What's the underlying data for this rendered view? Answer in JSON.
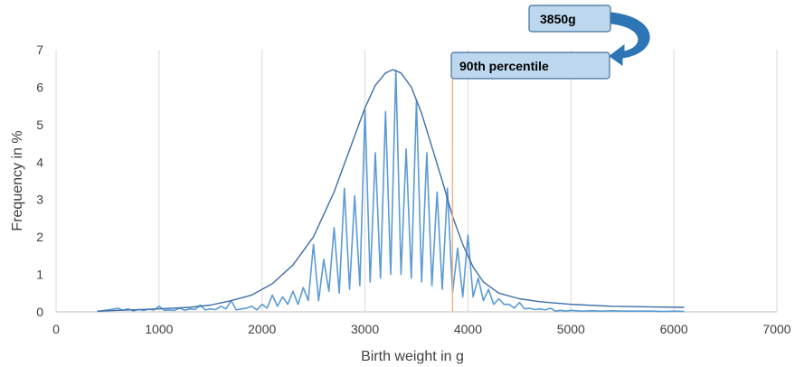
{
  "chart_data": {
    "type": "line",
    "title": "",
    "xlabel": "Birth weight in g",
    "ylabel": "Frequency in %",
    "xlim": [
      0,
      7000
    ],
    "ylim": [
      0,
      7
    ],
    "xticks": [
      0,
      1000,
      2000,
      3000,
      4000,
      5000,
      6000,
      7000
    ],
    "yticks": [
      0,
      1,
      2,
      3,
      4,
      5,
      6,
      7
    ],
    "grid": "vertical",
    "colors": {
      "series": "#5b9bd5",
      "curve": "#3f6fa8",
      "marker": "#f4b183",
      "callout_fill": "#bdd7ee",
      "callout_border": "#41719c",
      "arrow": "#2e75b6"
    },
    "series": [
      {
        "type": "line",
        "note_only_key": "raw",
        "x": [
          400,
          450,
          500,
          550,
          600,
          650,
          700,
          750,
          800,
          850,
          900,
          950,
          1000,
          1050,
          1100,
          1150,
          1200,
          1250,
          1300,
          1350,
          1400,
          1450,
          1500,
          1550,
          1600,
          1650,
          1700,
          1750,
          1800,
          1850,
          1900,
          1950,
          2000,
          2050,
          2100,
          2150,
          2200,
          2250,
          2300,
          2350,
          2400,
          2450,
          2500,
          2550,
          2600,
          2650,
          2700,
          2750,
          2800,
          2850,
          2900,
          2950,
          3000,
          3050,
          3100,
          3150,
          3200,
          3250,
          3300,
          3350,
          3400,
          3450,
          3500,
          3550,
          3600,
          3650,
          3700,
          3750,
          3800,
          3850,
          3900,
          3950,
          4000,
          4050,
          4100,
          4150,
          4200,
          4250,
          4300,
          4350,
          4400,
          4450,
          4500,
          4550,
          4600,
          4650,
          4700,
          4750,
          4800,
          4850,
          4900,
          4950,
          5000,
          5100,
          5200,
          5300,
          5400,
          5500,
          5600,
          5700,
          5800,
          5900,
          6000,
          6100
        ],
        "y": [
          0.01,
          0.03,
          0.05,
          0.07,
          0.1,
          0.04,
          0.08,
          0.03,
          0.06,
          0.04,
          0.07,
          0.05,
          0.15,
          0.04,
          0.05,
          0.04,
          0.1,
          0.04,
          0.08,
          0.06,
          0.18,
          0.05,
          0.08,
          0.06,
          0.15,
          0.08,
          0.3,
          0.05,
          0.08,
          0.1,
          0.15,
          0.05,
          0.2,
          0.1,
          0.45,
          0.15,
          0.4,
          0.2,
          0.55,
          0.2,
          0.65,
          0.3,
          1.8,
          0.3,
          1.4,
          0.55,
          2.25,
          0.5,
          3.3,
          0.6,
          3.1,
          0.7,
          5.4,
          0.8,
          4.25,
          0.9,
          5.35,
          1.0,
          6.45,
          1.0,
          4.35,
          0.9,
          5.65,
          0.8,
          4.25,
          0.7,
          3.2,
          0.6,
          3.3,
          0.5,
          1.7,
          0.4,
          2.05,
          0.4,
          0.9,
          0.3,
          0.6,
          0.2,
          0.35,
          0.2,
          0.2,
          0.1,
          0.25,
          0.08,
          0.1,
          0.06,
          0.08,
          0.05,
          0.1,
          0.02,
          0.04,
          0.02,
          0.04,
          0.02,
          0.03,
          0.02,
          0.03,
          0.02,
          0.02,
          0.02,
          0.02,
          0.01,
          0.02,
          0.01
        ]
      },
      {
        "type": "line",
        "x": [
          400,
          700,
          1000,
          1300,
          1500,
          1700,
          1900,
          2100,
          2300,
          2500,
          2700,
          2900,
          3000,
          3100,
          3200,
          3270,
          3350,
          3450,
          3550,
          3650,
          3750,
          3850,
          3950,
          4050,
          4150,
          4300,
          4500,
          4700,
          5000,
          5400,
          5800,
          6100
        ],
        "y": [
          0.02,
          0.05,
          0.08,
          0.12,
          0.18,
          0.3,
          0.45,
          0.75,
          1.25,
          2.0,
          3.2,
          4.7,
          5.45,
          6.05,
          6.38,
          6.47,
          6.38,
          6.0,
          5.3,
          4.4,
          3.5,
          2.55,
          1.8,
          1.2,
          0.8,
          0.5,
          0.35,
          0.27,
          0.2,
          0.15,
          0.13,
          0.12
        ]
      }
    ],
    "annotations": {
      "marker_x": 3850,
      "value_label": "3850g",
      "percentile_label": "90th percentile"
    }
  }
}
